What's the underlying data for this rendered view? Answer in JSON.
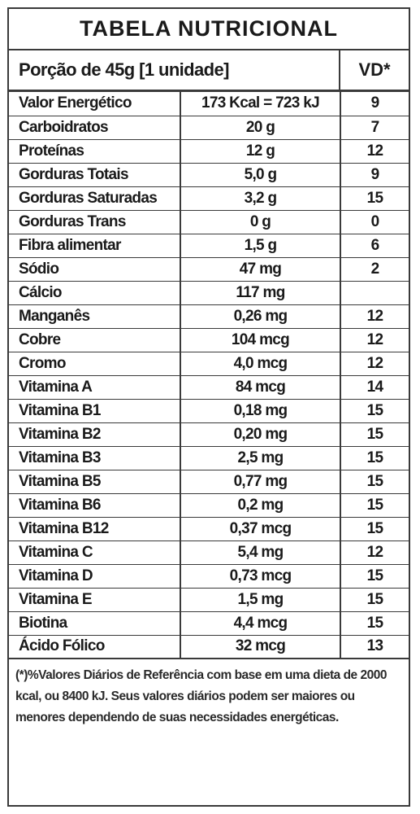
{
  "title": "TABELA NUTRICIONAL",
  "portion": {
    "label": "Porção de 45g  [1 unidade]",
    "vd_header": "VD*"
  },
  "rows": [
    {
      "name": "Valor Energético",
      "qty": "173 Kcal = 723 kJ",
      "vd": "9"
    },
    {
      "name": "Carboidratos",
      "qty": "20 g",
      "vd": "7"
    },
    {
      "name": "Proteínas",
      "qty": "12 g",
      "vd": "12"
    },
    {
      "name": "Gorduras Totais",
      "qty": "5,0 g",
      "vd": "9"
    },
    {
      "name": "Gorduras Saturadas",
      "qty": "3,2 g",
      "vd": "15"
    },
    {
      "name": "Gorduras Trans",
      "qty": "0 g",
      "vd": "0"
    },
    {
      "name": "Fibra alimentar",
      "qty": "1,5 g",
      "vd": "6"
    },
    {
      "name": "Sódio",
      "qty": "47 mg",
      "vd": "2"
    },
    {
      "name": "Cálcio",
      "qty": "117 mg",
      "vd": ""
    },
    {
      "name": "Manganês",
      "qty": "0,26 mg",
      "vd": "12"
    },
    {
      "name": "Cobre",
      "qty": "104 mcg",
      "vd": "12"
    },
    {
      "name": "Cromo",
      "qty": "4,0 mcg",
      "vd": "12"
    },
    {
      "name": "Vitamina A",
      "qty": "84 mcg",
      "vd": "14"
    },
    {
      "name": "Vitamina B1",
      "qty": "0,18 mg",
      "vd": "15"
    },
    {
      "name": "Vitamina B2",
      "qty": "0,20 mg",
      "vd": "15"
    },
    {
      "name": "Vitamina B3",
      "qty": "2,5 mg",
      "vd": "15"
    },
    {
      "name": "Vitamina B5",
      "qty": "0,77 mg",
      "vd": "15"
    },
    {
      "name": "Vitamina B6",
      "qty": "0,2 mg",
      "vd": "15"
    },
    {
      "name": "Vitamina B12",
      "qty": "0,37 mcg",
      "vd": "15"
    },
    {
      "name": "Vitamina C",
      "qty": "5,4 mg",
      "vd": "12"
    },
    {
      "name": "Vitamina D",
      "qty": "0,73 mcg",
      "vd": "15"
    },
    {
      "name": "Vitamina E",
      "qty": "1,5 mg",
      "vd": "15"
    },
    {
      "name": "Biotina",
      "qty": "4,4 mcg",
      "vd": "15"
    },
    {
      "name": "Ácido Fólico",
      "qty": "32 mcg",
      "vd": "13"
    }
  ],
  "footnote": "(*)%Valores Diários de Referência com base em uma dieta de 2000 kcal, ou 8400 kJ. Seus valores diários podem ser maiores ou menores dependendo de suas necessidades energéticas."
}
